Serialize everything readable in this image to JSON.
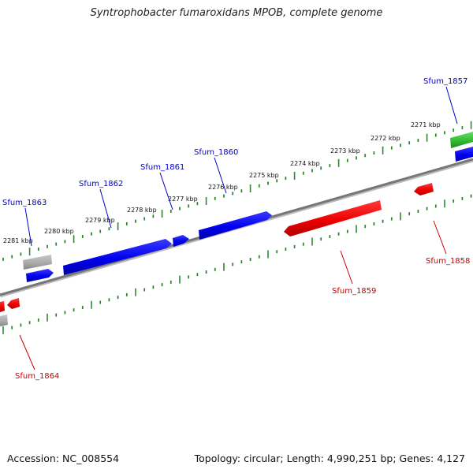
{
  "title": "Syntrophobacter fumaroxidans MPOB, complete genome",
  "footer": {
    "accession": "Accession: NC_008554",
    "summary": "Topology: circular; Length: 4,990,251 bp; Genes: 4,127"
  },
  "colors": {
    "forward_gene": "#0000ee",
    "reverse_gene": "#ee0000",
    "pseudo_gene": "#aaaaaa",
    "rna_gene": "#33bb33",
    "backbone": "#888888",
    "ticks": "#2a8a2a",
    "forward_label": "#0000cc",
    "reverse_label": "#cc0000"
  },
  "kbp_labels": [
    "2271 kbp",
    "2272 kbp",
    "2273 kbp",
    "2274 kbp",
    "2275 kbp",
    "2276 kbp",
    "2277 kbp",
    "2278 kbp",
    "2279 kbp",
    "2280 kbp",
    "2281 kbp"
  ],
  "gene_labels": [
    {
      "text": "Sfum_1857",
      "strand": "forward"
    },
    {
      "text": "Sfum_1860",
      "strand": "forward"
    },
    {
      "text": "Sfum_1861",
      "strand": "forward"
    },
    {
      "text": "Sfum_1862",
      "strand": "forward"
    },
    {
      "text": "Sfum_1863",
      "strand": "forward"
    },
    {
      "text": "Sfum_1858",
      "strand": "reverse"
    },
    {
      "text": "Sfum_1859",
      "strand": "reverse"
    },
    {
      "text": "Sfum_1864",
      "strand": "reverse"
    }
  ]
}
